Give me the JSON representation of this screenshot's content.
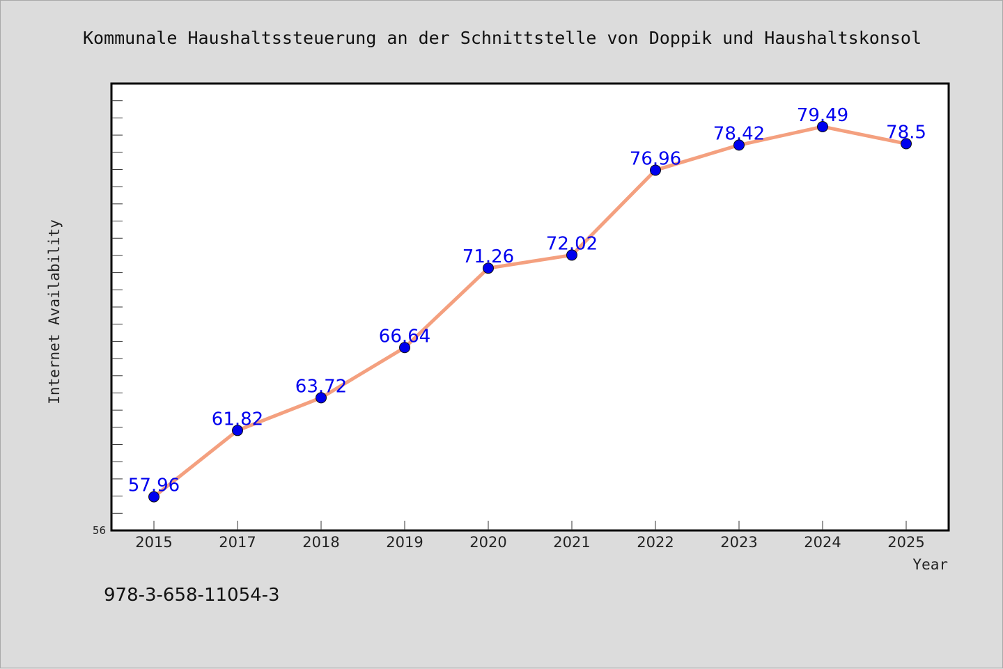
{
  "chart_data": {
    "type": "line",
    "title": "Kommunale Haushaltssteuerung an der Schnittstelle von Doppik und Haushaltskonsol",
    "xlabel": "Year",
    "ylabel": "Internet Availability",
    "categories": [
      "2015",
      "2017",
      "2018",
      "2019",
      "2020",
      "2021",
      "2022",
      "2023",
      "2024",
      "2025"
    ],
    "series": [
      {
        "values": [
          57.96,
          61.82,
          63.72,
          66.64,
          71.26,
          72.02,
          76.96,
          78.42,
          79.49,
          78.5
        ],
        "labels": [
          "57.96",
          "61.82",
          "63.72",
          "66.64",
          "71.26",
          "72.02",
          "76.96",
          "78.42",
          "79.49",
          "78.5"
        ],
        "line_color": "#f4a07f",
        "marker_color": "#0000ee"
      }
    ],
    "ylim": [
      56,
      82
    ],
    "y_tick_labels": [
      "56"
    ],
    "grid": false,
    "legend": "none"
  },
  "footer": {
    "isbn": "978-3-658-11054-3"
  }
}
